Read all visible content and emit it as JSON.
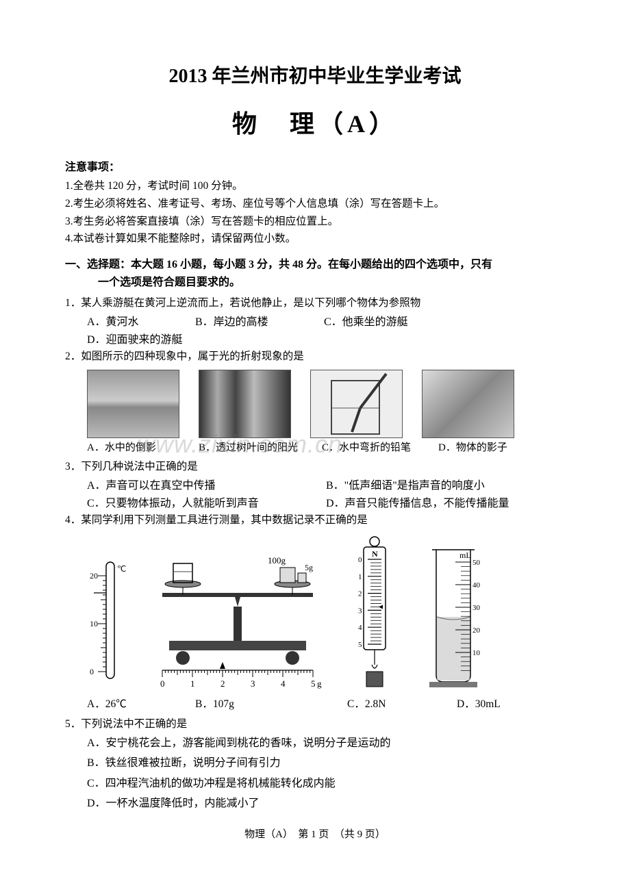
{
  "header": {
    "main_title": "2013 年兰州市初中毕业生学业考试",
    "subject_title": "物　理（A）"
  },
  "notice": {
    "heading": "注意事项：",
    "items": [
      "1.全卷共 120 分，考试时间 100 分钟。",
      "2.考生必须将姓名、准考证号、考场、座位号等个人信息填（涂）写在答题卡上。",
      "3.考生务必将答案直接填（涂）写在答题卡的相应位置上。",
      "4.本试卷计算如果不能整除时，请保留两位小数。"
    ]
  },
  "section1": {
    "line1": "一、选择题：本大题 16 小题，每小题 3 分，共 48 分。在每小题给出的四个选项中，只有",
    "line2": "一个选项是符合题目要求的。"
  },
  "q1": {
    "stem": "1．某人乘游艇在黄河上逆流而上，若说他静止，是以下列哪个物体为参照物",
    "A": "A．黄河水",
    "B": "B．岸边的高楼",
    "C": "C．他乘坐的游艇",
    "D": "D．迎面驶来的游艇"
  },
  "q2": {
    "stem": "2．如图所示的四种现象中，属于光的折射现象的是",
    "captions": {
      "A": "A．水中的倒影",
      "B": "B．透过树叶间的阳光",
      "C": "C．水中弯折的铅笔",
      "D": "D．物体的影子"
    },
    "images": [
      {
        "alt": "mountain-reflection",
        "gradient": "linear-gradient(180deg,#999 0%,#ccc 45%,#888 55%,#bbb 100%)"
      },
      {
        "alt": "sunlight-trees",
        "gradient": "linear-gradient(90deg,#333 0%,#aaa 20%,#444 40%,#bbb 60%,#333 100%)"
      },
      {
        "alt": "bent-pencil",
        "gradient": "linear-gradient(180deg,#eee 0%,#ddd 60%,#ccc 100%)"
      },
      {
        "alt": "shadow",
        "gradient": "linear-gradient(135deg,#ddd 0%,#888 50%,#ccc 100%)"
      }
    ]
  },
  "q3": {
    "stem": "3．下列几种说法中正确的是",
    "A": "A．声音可以在真空中传播",
    "B": "B．\"低声细语\"是指声音的响度小",
    "C": "C．只要物体振动，人就能听到声音",
    "D": "D．声音只能传播信息，不能传播能量"
  },
  "q4": {
    "stem": "4．某同学利用下列测量工具进行测量，其中数据记录不正确的是",
    "A": "A．26℃",
    "B": "B．107g",
    "C": "C．2.8N",
    "D": "D．30mL",
    "thermometer": {
      "unit": "℃",
      "ticks": [
        0,
        10,
        20
      ],
      "reading_y": 0.28,
      "colors": {
        "stroke": "#000000",
        "fill": "#ffffff"
      }
    },
    "balance": {
      "weights": [
        "100g",
        "5g"
      ],
      "ruler": {
        "min": 0,
        "max": 5,
        "unit": "g",
        "pointer": 2.0
      },
      "colors": {
        "stroke": "#000000",
        "fill_dark": "#555555"
      }
    },
    "spring_scale": {
      "unit": "N",
      "ticks": [
        0,
        1,
        2,
        3,
        4,
        5
      ],
      "reading": 2.8,
      "colors": {
        "stroke": "#000000"
      }
    },
    "cylinder": {
      "unit": "mL",
      "ticks": [
        10,
        20,
        30,
        40,
        50
      ],
      "liquid_level": 30,
      "max": 50,
      "colors": {
        "stroke": "#000000",
        "liquid": "#cccccc"
      }
    }
  },
  "q5": {
    "stem": "5．下列说法中不正确的是",
    "A": "A．安宁桃花会上，游客能闻到桃花的香味，说明分子是运动的",
    "B": "B．铁丝很难被拉断，说明分子间有引力",
    "C": "C．四冲程汽油机的做功冲程是将机械能转化成内能",
    "D": "D．一杯水温度降低时，内能减小了"
  },
  "watermark": "www.zixin.com.cn",
  "footer": "物理（A）　第 1 页　（共 9 页）"
}
